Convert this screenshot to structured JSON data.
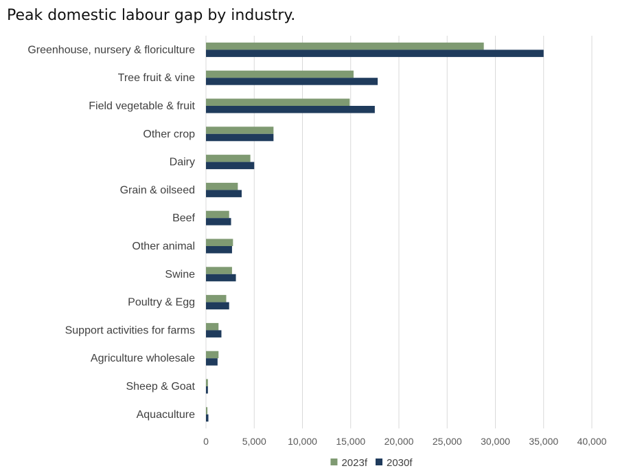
{
  "chart_data": {
    "type": "bar",
    "orientation": "horizontal",
    "title": "Peak domestic labour gap by industry.",
    "categories": [
      "Greenhouse, nursery & floriculture",
      "Tree fruit & vine",
      "Field vegetable & fruit",
      "Other crop",
      "Dairy",
      "Grain & oilseed",
      "Beef",
      "Other animal",
      "Swine",
      "Poultry & Egg",
      "Support activities for farms",
      "Agriculture wholesale",
      "Sheep & Goat",
      "Aquaculture"
    ],
    "series": [
      {
        "name": "2023f",
        "color": "#7F9A72",
        "values": [
          28800,
          15300,
          14900,
          7000,
          4600,
          3300,
          2400,
          2800,
          2700,
          2100,
          1300,
          1300,
          200,
          150
        ]
      },
      {
        "name": "2030f",
        "color": "#1F3B5C",
        "values": [
          35000,
          17800,
          17500,
          7000,
          5000,
          3700,
          2600,
          2700,
          3100,
          2400,
          1600,
          1200,
          200,
          250
        ]
      }
    ],
    "xlim": [
      0,
      40000
    ],
    "xticks": [
      0,
      5000,
      10000,
      15000,
      20000,
      25000,
      30000,
      35000,
      40000
    ],
    "xtick_labels": [
      "0",
      "5,000",
      "10,000",
      "15,000",
      "20,000",
      "25,000",
      "30,000",
      "35,000",
      "40,000"
    ],
    "grid": true,
    "legend_position": "bottom"
  }
}
